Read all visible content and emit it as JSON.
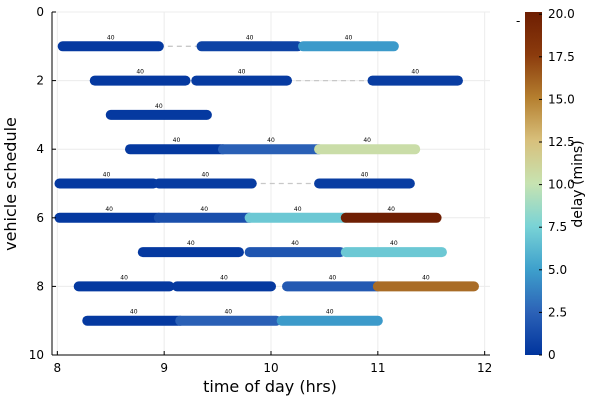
{
  "chart_data": {
    "type": "gantt",
    "xlabel": "time of day (hrs)",
    "ylabel": "vehicle schedule",
    "xlim": [
      7.95,
      12.05
    ],
    "ylim": [
      10,
      0
    ],
    "xticks": [
      8,
      9,
      10,
      11,
      12
    ],
    "yticks": [
      0,
      2,
      4,
      6,
      8,
      10
    ],
    "grid": true,
    "colorbar": {
      "label": "delay (mins)",
      "min": 0,
      "max": 20.13,
      "ticks": [
        "0",
        "2.5",
        "5.0",
        "7.5",
        "10.0",
        "12.5",
        "15.0",
        "17.5",
        "20.0"
      ],
      "colormap": [
        "#00349d",
        "#2c62b7",
        "#3ea0cc",
        "#79d3d6",
        "#c7e3b1",
        "#d8c07c",
        "#b57f2f",
        "#8b3b0d",
        "#6e1e02"
      ]
    },
    "legend_marker": "-",
    "rows": [
      {
        "row": 1,
        "segments": [
          {
            "start": 8.05,
            "end": 8.95,
            "delay": 0.3,
            "label": "40"
          },
          {
            "start": 9.35,
            "end": 10.25,
            "delay": 0.8,
            "label": "40"
          },
          {
            "start": 10.3,
            "end": 11.15,
            "delay": 4.8,
            "label": "40"
          }
        ],
        "gaps": [
          [
            8.95,
            9.35
          ]
        ]
      },
      {
        "row": 2,
        "segments": [
          {
            "start": 8.35,
            "end": 9.2,
            "delay": 0.3,
            "label": "40"
          },
          {
            "start": 9.3,
            "end": 10.15,
            "delay": 0.4,
            "label": "40"
          },
          {
            "start": 10.95,
            "end": 11.75,
            "delay": 0.5,
            "label": "40"
          }
        ],
        "gaps": [
          [
            10.15,
            10.95
          ]
        ]
      },
      {
        "row": 3,
        "segments": [
          {
            "start": 8.5,
            "end": 9.4,
            "delay": 0.3,
            "label": "40"
          }
        ],
        "gaps": []
      },
      {
        "row": 4,
        "segments": [
          {
            "start": 8.68,
            "end": 9.55,
            "delay": 0.3,
            "label": "40"
          },
          {
            "start": 9.55,
            "end": 10.45,
            "delay": 2.4,
            "label": "40"
          },
          {
            "start": 10.45,
            "end": 11.35,
            "delay": 10.5,
            "label": "40"
          }
        ],
        "gaps": []
      },
      {
        "row": 5,
        "segments": [
          {
            "start": 8.02,
            "end": 8.9,
            "delay": 0.3,
            "label": "40"
          },
          {
            "start": 8.95,
            "end": 9.82,
            "delay": 0.4,
            "label": "40"
          },
          {
            "start": 10.45,
            "end": 11.3,
            "delay": 0.5,
            "label": "40"
          }
        ],
        "gaps": [
          [
            9.82,
            10.45
          ]
        ]
      },
      {
        "row": 6,
        "segments": [
          {
            "start": 8.02,
            "end": 8.95,
            "delay": 0.3,
            "label": "40"
          },
          {
            "start": 8.95,
            "end": 9.8,
            "delay": 1.5,
            "label": "40"
          },
          {
            "start": 9.8,
            "end": 10.7,
            "delay": 7.0,
            "label": "40"
          },
          {
            "start": 10.7,
            "end": 11.55,
            "delay": 20.0,
            "label": "40"
          }
        ],
        "gaps": []
      },
      {
        "row": 7,
        "segments": [
          {
            "start": 8.8,
            "end": 9.7,
            "delay": 0.3,
            "label": "40"
          },
          {
            "start": 9.8,
            "end": 10.65,
            "delay": 1.8,
            "label": "40"
          },
          {
            "start": 10.7,
            "end": 11.6,
            "delay": 7.0,
            "label": "40"
          }
        ],
        "gaps": []
      },
      {
        "row": 8,
        "segments": [
          {
            "start": 8.2,
            "end": 9.05,
            "delay": 0.3,
            "label": "40"
          },
          {
            "start": 9.12,
            "end": 10.0,
            "delay": 0.3,
            "label": "40"
          },
          {
            "start": 10.15,
            "end": 11.0,
            "delay": 2.0,
            "label": "40"
          },
          {
            "start": 11.0,
            "end": 11.9,
            "delay": 15.8,
            "label": "40"
          }
        ],
        "gaps": []
      },
      {
        "row": 9,
        "segments": [
          {
            "start": 8.28,
            "end": 9.15,
            "delay": 0.3,
            "label": "40"
          },
          {
            "start": 9.15,
            "end": 10.05,
            "delay": 2.4,
            "label": "40"
          },
          {
            "start": 10.1,
            "end": 11.0,
            "delay": 4.8,
            "label": "40"
          }
        ],
        "gaps": []
      }
    ]
  }
}
